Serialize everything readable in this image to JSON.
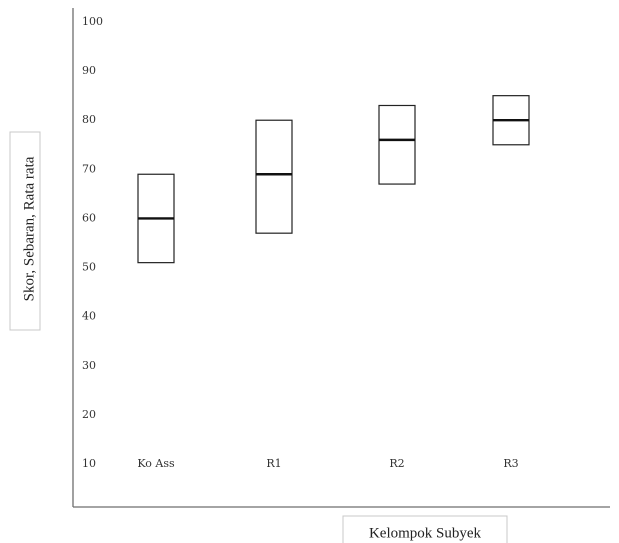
{
  "chart_data": {
    "type": "box",
    "title": "",
    "xlabel": "Kelompok Subyek",
    "ylabel": "Skor, Sebaran, Rata rata",
    "ylim": [
      10,
      100
    ],
    "yticks": [
      10,
      20,
      30,
      40,
      50,
      60,
      70,
      80,
      90,
      100
    ],
    "categories": [
      "Ko Ass",
      "R1",
      "R2",
      "R3"
    ],
    "boxes": [
      {
        "category": "Ko Ass",
        "low": 51,
        "high": 69,
        "mean": 60
      },
      {
        "category": "R1",
        "low": 57,
        "high": 80,
        "mean": 69
      },
      {
        "category": "R2",
        "low": 67,
        "high": 83,
        "mean": 76
      },
      {
        "category": "R3",
        "low": 75,
        "high": 85,
        "mean": 80
      }
    ],
    "grid": false,
    "legend": "none",
    "colors": {
      "axis": "#6e6e6e",
      "box_edge": "#222222",
      "mean_line": "#111111",
      "label_frame": "#c8c8c8"
    }
  }
}
